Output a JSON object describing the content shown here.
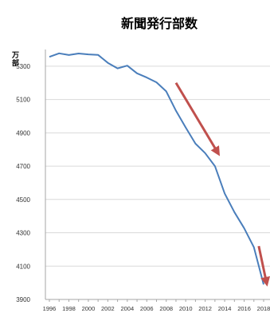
{
  "chart_data": {
    "type": "line",
    "title": "新聞発行部数",
    "ylabel": "万部",
    "xlabel": "",
    "x": [
      1996,
      1997,
      1998,
      1999,
      2000,
      2001,
      2002,
      2003,
      2004,
      2005,
      2006,
      2007,
      2008,
      2009,
      2010,
      2011,
      2012,
      2013,
      2014,
      2015,
      2016,
      2017,
      2018
    ],
    "series": [
      {
        "values": [
          5356,
          5377,
          5367,
          5376,
          5371,
          5368,
          5320,
          5287,
          5303,
          5257,
          5232,
          5203,
          5149,
          5032,
          4932,
          4835,
          4778,
          4700,
          4536,
          4424,
          4328,
          4213,
          3990
        ],
        "color": "#4a7ebb"
      }
    ],
    "xticks": [
      "1996",
      "1998",
      "2000",
      "2002",
      "2004",
      "2006",
      "2008",
      "2010",
      "2012",
      "2014",
      "2016",
      "2018"
    ],
    "yticks": [
      "3900",
      "4100",
      "4300",
      "4500",
      "4700",
      "4900",
      "5100",
      "5300"
    ],
    "ylim": [
      3900,
      5400
    ],
    "xlim": [
      1996,
      2018
    ],
    "grid": "horizontal",
    "legend": "none",
    "annotations": [
      {
        "type": "arrow",
        "color": "#c0504d",
        "from": [
          2009,
          5200
        ],
        "to": [
          2013.3,
          4780
        ]
      },
      {
        "type": "arrow",
        "color": "#c0504d",
        "from": [
          2017.5,
          4220
        ],
        "to": [
          2018.3,
          4000
        ]
      }
    ]
  }
}
